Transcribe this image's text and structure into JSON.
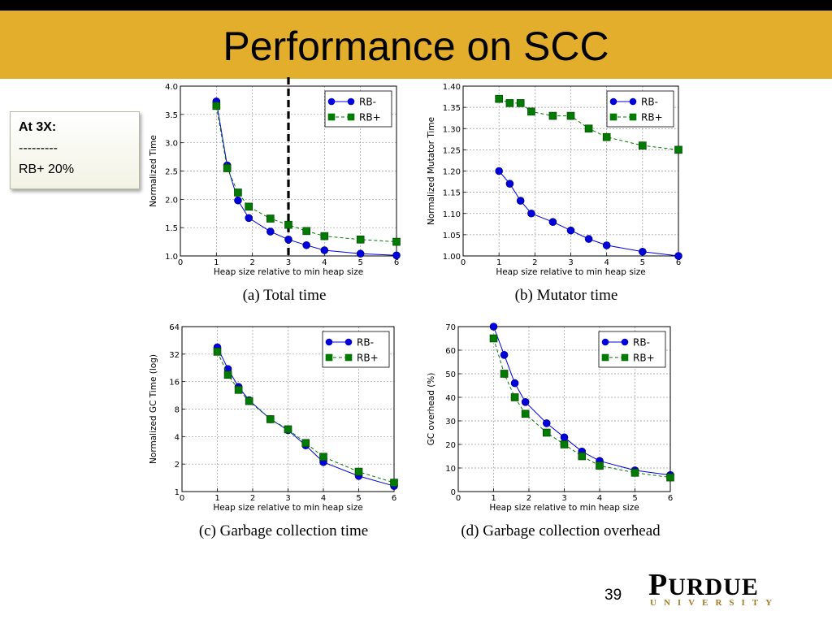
{
  "slide": {
    "title": "Performance on SCC",
    "callout": {
      "line1": "At 3X:",
      "line2": "---------",
      "line3": "RB+   20%"
    },
    "page_number": "39",
    "logo": {
      "word_first": "P",
      "word_rest": "URDUE",
      "sub": "UNIVERSITY"
    },
    "colors": {
      "title_bar": "#e3ae2b",
      "top_bar": "#000000",
      "rb_minus": "#0000dd",
      "rb_plus": "#007a00"
    }
  },
  "chart_data": [
    {
      "id": "a",
      "type": "line",
      "caption": "(a) Total time",
      "xlabel": "Heap size relative to min heap size",
      "ylabel": "Normalized Time",
      "xlim": [
        0,
        6
      ],
      "ylim": [
        1.0,
        4.0
      ],
      "xticks": [
        "0",
        "1",
        "2",
        "3",
        "4",
        "5",
        "6"
      ],
      "yticks": [
        "1.0",
        "1.5",
        "2.0",
        "2.5",
        "3.0",
        "3.5",
        "4.0"
      ],
      "legend_position": "top-right",
      "grid": true,
      "vline": 3,
      "series": [
        {
          "name": "RB-",
          "marker": "circle",
          "dash": false,
          "x": [
            1,
            1.3,
            1.6,
            1.9,
            2.5,
            3,
            3.5,
            4,
            5,
            6
          ],
          "y": [
            3.73,
            2.6,
            1.98,
            1.67,
            1.43,
            1.29,
            1.19,
            1.1,
            1.04,
            1.01
          ]
        },
        {
          "name": "RB+",
          "marker": "square",
          "dash": true,
          "x": [
            1,
            1.3,
            1.6,
            1.9,
            2.5,
            3,
            3.5,
            4,
            5,
            6
          ],
          "y": [
            3.65,
            2.55,
            2.12,
            1.87,
            1.66,
            1.55,
            1.44,
            1.35,
            1.29,
            1.25
          ]
        }
      ]
    },
    {
      "id": "b",
      "type": "line",
      "caption": "(b) Mutator time",
      "xlabel": "Heap size relative to min heap size",
      "ylabel": "Normalized Mutator Time",
      "xlim": [
        0,
        6
      ],
      "ylim": [
        1.0,
        1.4
      ],
      "xticks": [
        "0",
        "1",
        "2",
        "3",
        "4",
        "5",
        "6"
      ],
      "yticks": [
        "1.00",
        "1.05",
        "1.10",
        "1.15",
        "1.20",
        "1.25",
        "1.30",
        "1.35",
        "1.40"
      ],
      "legend_position": "top-right",
      "grid": true,
      "series": [
        {
          "name": "RB-",
          "marker": "circle",
          "dash": false,
          "x": [
            1,
            1.3,
            1.6,
            1.9,
            2.5,
            3,
            3.5,
            4,
            5,
            6
          ],
          "y": [
            1.2,
            1.17,
            1.13,
            1.1,
            1.08,
            1.06,
            1.04,
            1.025,
            1.01,
            1.0
          ]
        },
        {
          "name": "RB+",
          "marker": "square",
          "dash": true,
          "x": [
            1,
            1.3,
            1.6,
            1.9,
            2.5,
            3,
            3.5,
            4,
            5,
            6
          ],
          "y": [
            1.37,
            1.36,
            1.36,
            1.34,
            1.33,
            1.33,
            1.3,
            1.28,
            1.26,
            1.25
          ]
        }
      ]
    },
    {
      "id": "c",
      "type": "line",
      "caption": "(c) Garbage collection time",
      "xlabel": "Heap size relative to min heap size",
      "ylabel": "Normalized GC Time (log)",
      "xlim": [
        0,
        6
      ],
      "ylim": [
        1,
        64
      ],
      "log_y": true,
      "xticks": [
        "0",
        "1",
        "2",
        "3",
        "4",
        "5",
        "6"
      ],
      "yticks": [
        "1",
        "2",
        "4",
        "8",
        "16",
        "32",
        "64"
      ],
      "legend_position": "top-right",
      "grid": true,
      "series": [
        {
          "name": "RB-",
          "marker": "circle",
          "dash": false,
          "x": [
            1,
            1.3,
            1.6,
            1.9,
            2.5,
            3,
            3.5,
            4,
            5,
            6
          ],
          "y": [
            38,
            22,
            14,
            10,
            6.2,
            4.7,
            3.2,
            2.1,
            1.48,
            1.15
          ]
        },
        {
          "name": "RB+",
          "marker": "square",
          "dash": true,
          "x": [
            1,
            1.3,
            1.6,
            1.9,
            2.5,
            3,
            3.5,
            4,
            5,
            6
          ],
          "y": [
            34,
            19,
            13,
            9.8,
            6.2,
            4.8,
            3.4,
            2.4,
            1.65,
            1.25
          ]
        }
      ]
    },
    {
      "id": "d",
      "type": "line",
      "caption": "(d) Garbage collection overhead",
      "xlabel": "Heap size relative to min heap size",
      "ylabel": "GC overhead (%)",
      "xlim": [
        0,
        6
      ],
      "ylim": [
        0,
        70
      ],
      "xticks": [
        "0",
        "1",
        "2",
        "3",
        "4",
        "5",
        "6"
      ],
      "yticks": [
        "0",
        "10",
        "20",
        "30",
        "40",
        "50",
        "60",
        "70"
      ],
      "legend_position": "top-right",
      "grid": true,
      "series": [
        {
          "name": "RB-",
          "marker": "circle",
          "dash": false,
          "x": [
            1,
            1.3,
            1.6,
            1.9,
            2.5,
            3,
            3.5,
            4,
            5,
            6
          ],
          "y": [
            70,
            58,
            46,
            38,
            29,
            23,
            17,
            13,
            9,
            7
          ]
        },
        {
          "name": "RB+",
          "marker": "square",
          "dash": true,
          "x": [
            1,
            1.3,
            1.6,
            1.9,
            2.5,
            3,
            3.5,
            4,
            5,
            6
          ],
          "y": [
            65,
            50,
            40,
            33,
            25,
            20,
            15,
            11,
            8,
            6
          ]
        }
      ]
    }
  ]
}
